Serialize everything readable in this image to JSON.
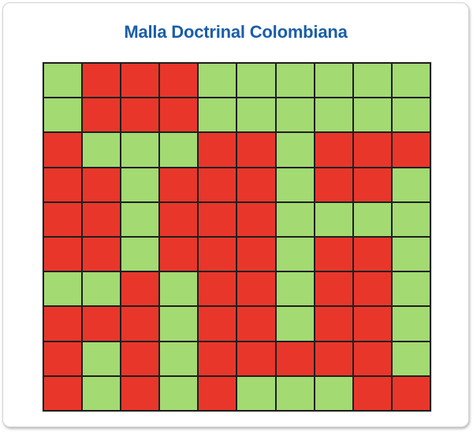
{
  "title": "Malla Doctrinal Colombiana",
  "colors": {
    "title": "#1a5ea8",
    "green": "#a3da72",
    "red": "#e8372a",
    "grid_lines": "#1f1f1f"
  },
  "legend_key": {
    "G": "green",
    "R": "red"
  },
  "grid": [
    [
      "G",
      "R",
      "R",
      "R",
      "G",
      "G",
      "G",
      "G",
      "G",
      "G"
    ],
    [
      "G",
      "R",
      "R",
      "R",
      "G",
      "G",
      "G",
      "G",
      "G",
      "G"
    ],
    [
      "R",
      "G",
      "G",
      "G",
      "R",
      "R",
      "G",
      "R",
      "R",
      "R"
    ],
    [
      "R",
      "R",
      "G",
      "R",
      "R",
      "R",
      "G",
      "R",
      "R",
      "G"
    ],
    [
      "R",
      "R",
      "G",
      "R",
      "R",
      "R",
      "G",
      "G",
      "G",
      "G"
    ],
    [
      "R",
      "R",
      "G",
      "R",
      "R",
      "R",
      "G",
      "R",
      "R",
      "G"
    ],
    [
      "G",
      "G",
      "R",
      "G",
      "R",
      "R",
      "G",
      "R",
      "R",
      "G"
    ],
    [
      "R",
      "R",
      "R",
      "G",
      "R",
      "R",
      "G",
      "R",
      "R",
      "G"
    ],
    [
      "R",
      "G",
      "R",
      "G",
      "R",
      "R",
      "R",
      "R",
      "R",
      "G"
    ],
    [
      "R",
      "G",
      "R",
      "G",
      "R",
      "G",
      "G",
      "G",
      "R",
      "R"
    ]
  ]
}
